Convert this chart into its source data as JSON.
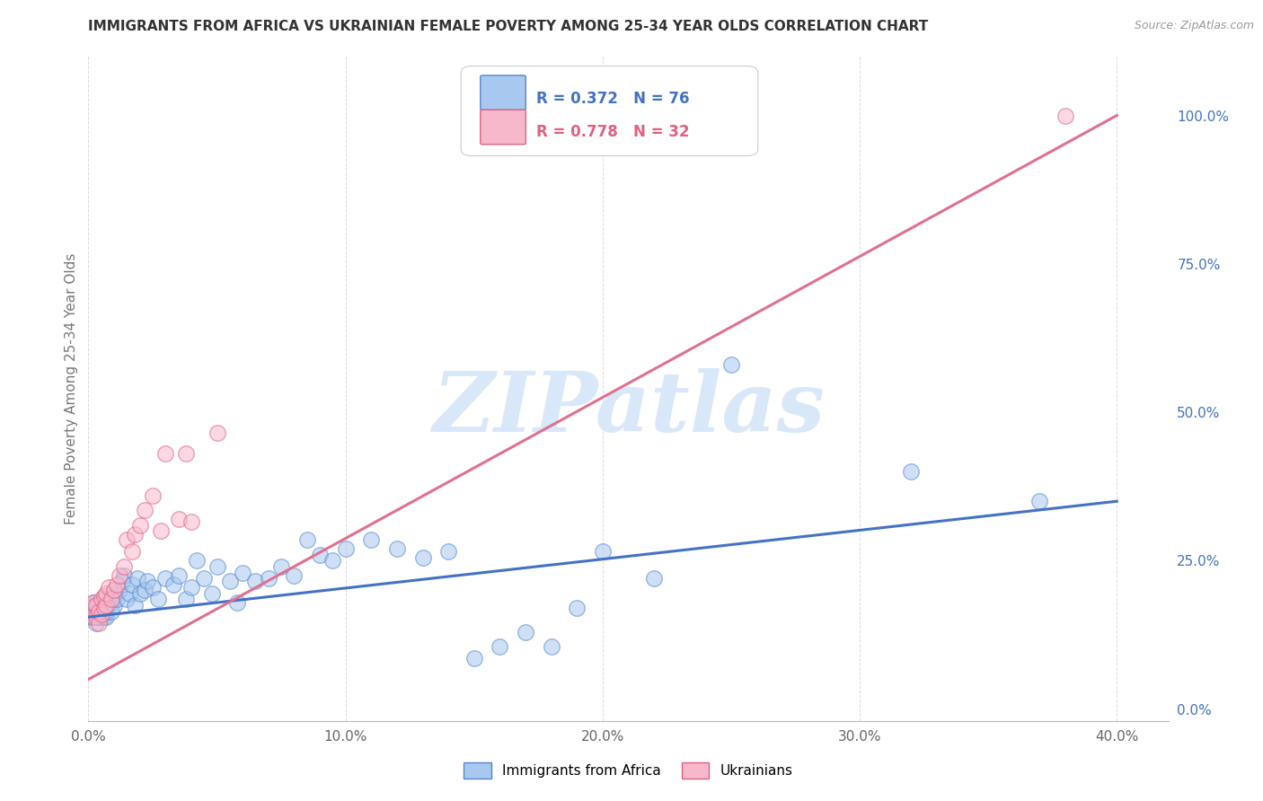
{
  "title": "IMMIGRANTS FROM AFRICA VS UKRAINIAN FEMALE POVERTY AMONG 25-34 YEAR OLDS CORRELATION CHART",
  "source": "Source: ZipAtlas.com",
  "ylabel": "Female Poverty Among 25-34 Year Olds",
  "xlim": [
    0.0,
    0.42
  ],
  "ylim": [
    -0.02,
    1.1
  ],
  "xticks": [
    0.0,
    0.1,
    0.2,
    0.3,
    0.4
  ],
  "xticklabels": [
    "0.0%",
    "10.0%",
    "20.0%",
    "30.0%",
    "40.0%"
  ],
  "yticks_right": [
    0.0,
    0.25,
    0.5,
    0.75,
    1.0
  ],
  "yticklabels_right": [
    "0.0%",
    "25.0%",
    "50.0%",
    "75.0%",
    "100.0%"
  ],
  "africa_fill_color": "#A8C8F0",
  "africa_edge_color": "#5588CC",
  "ukraine_fill_color": "#F8B8CC",
  "ukraine_edge_color": "#E06080",
  "africa_line_color": "#4472C4",
  "ukraine_line_color": "#E07090",
  "right_tick_color": "#4472C4",
  "legend_label_africa": "Immigrants from Africa",
  "legend_label_ukraine": "Ukrainians",
  "watermark_text": "ZIPatlas",
  "watermark_color": "#D8E8F8",
  "background_color": "#FFFFFF",
  "grid_color": "#CCCCCC",
  "title_color": "#333333",
  "africa_scatter_x": [
    0.001,
    0.001,
    0.002,
    0.002,
    0.002,
    0.003,
    0.003,
    0.003,
    0.003,
    0.004,
    0.004,
    0.004,
    0.005,
    0.005,
    0.005,
    0.005,
    0.006,
    0.006,
    0.006,
    0.007,
    0.007,
    0.007,
    0.008,
    0.008,
    0.009,
    0.009,
    0.01,
    0.01,
    0.011,
    0.012,
    0.013,
    0.014,
    0.015,
    0.016,
    0.017,
    0.018,
    0.019,
    0.02,
    0.022,
    0.023,
    0.025,
    0.027,
    0.03,
    0.033,
    0.035,
    0.038,
    0.04,
    0.042,
    0.045,
    0.048,
    0.05,
    0.055,
    0.058,
    0.06,
    0.065,
    0.07,
    0.075,
    0.08,
    0.085,
    0.09,
    0.095,
    0.1,
    0.11,
    0.12,
    0.13,
    0.14,
    0.15,
    0.16,
    0.17,
    0.18,
    0.19,
    0.2,
    0.22,
    0.25,
    0.32,
    0.37
  ],
  "africa_scatter_y": [
    0.155,
    0.17,
    0.175,
    0.165,
    0.18,
    0.145,
    0.16,
    0.175,
    0.165,
    0.155,
    0.175,
    0.16,
    0.155,
    0.175,
    0.165,
    0.18,
    0.165,
    0.155,
    0.185,
    0.175,
    0.155,
    0.165,
    0.18,
    0.175,
    0.18,
    0.165,
    0.19,
    0.175,
    0.185,
    0.2,
    0.215,
    0.225,
    0.185,
    0.195,
    0.21,
    0.175,
    0.22,
    0.195,
    0.2,
    0.215,
    0.205,
    0.185,
    0.22,
    0.21,
    0.225,
    0.185,
    0.205,
    0.25,
    0.22,
    0.195,
    0.24,
    0.215,
    0.18,
    0.23,
    0.215,
    0.22,
    0.24,
    0.225,
    0.285,
    0.26,
    0.25,
    0.27,
    0.285,
    0.27,
    0.255,
    0.265,
    0.085,
    0.105,
    0.13,
    0.105,
    0.17,
    0.265,
    0.22,
    0.58,
    0.4,
    0.35
  ],
  "ukraine_scatter_x": [
    0.001,
    0.002,
    0.002,
    0.003,
    0.003,
    0.004,
    0.004,
    0.005,
    0.005,
    0.006,
    0.006,
    0.007,
    0.007,
    0.008,
    0.009,
    0.01,
    0.011,
    0.012,
    0.014,
    0.015,
    0.017,
    0.018,
    0.02,
    0.022,
    0.025,
    0.028,
    0.03,
    0.035,
    0.038,
    0.04,
    0.05,
    0.38
  ],
  "ukraine_scatter_y": [
    0.17,
    0.155,
    0.18,
    0.155,
    0.175,
    0.145,
    0.165,
    0.16,
    0.185,
    0.17,
    0.19,
    0.175,
    0.195,
    0.205,
    0.185,
    0.2,
    0.21,
    0.225,
    0.24,
    0.285,
    0.265,
    0.295,
    0.31,
    0.335,
    0.36,
    0.3,
    0.43,
    0.32,
    0.43,
    0.315,
    0.465,
    1.0
  ],
  "africa_trend_x": [
    0.0,
    0.4
  ],
  "africa_trend_y": [
    0.155,
    0.35
  ],
  "ukraine_trend_x": [
    0.0,
    0.4
  ],
  "ukraine_trend_y": [
    0.05,
    1.0
  ]
}
